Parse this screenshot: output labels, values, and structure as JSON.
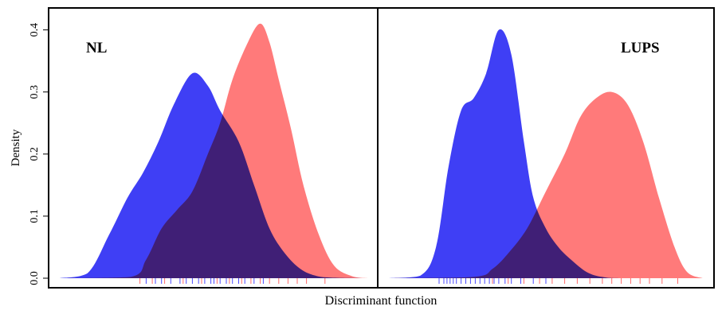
{
  "chart_data": {
    "type": "area",
    "ylabel": "Density",
    "xlabel": "Discriminant function",
    "ylim": [
      0,
      0.42
    ],
    "y_ticks": [
      "0.0",
      "0.1",
      "0.2",
      "0.3",
      "0.4"
    ],
    "y_tick_values": [
      0.0,
      0.1,
      0.2,
      0.3,
      0.4
    ],
    "grid": false,
    "colors": {
      "blue": "#3b3bf5",
      "red": "#ff4747",
      "overlap": "#c8174f"
    },
    "panels": [
      {
        "label": "NL",
        "xlim": [
          0,
          10
        ],
        "series": [
          {
            "color": "blue",
            "x": [
              0,
              0.9,
              1.6,
              2.2,
              2.7,
              3.2,
              3.7,
              4.3,
              4.8,
              5.2,
              5.8,
              6.3,
              6.8,
              7.3,
              7.8,
              8.3,
              8.8,
              10
            ],
            "y": [
              0,
              0.008,
              0.07,
              0.13,
              0.17,
              0.22,
              0.28,
              0.33,
              0.31,
              0.27,
              0.22,
              0.15,
              0.08,
              0.04,
              0.015,
              0.004,
              0.001,
              0
            ]
          },
          {
            "color": "red",
            "x": [
              0,
              2.3,
              2.8,
              3.3,
              3.8,
              4.3,
              4.8,
              5.2,
              5.6,
              6.1,
              6.5,
              6.8,
              7.1,
              7.5,
              7.9,
              8.4,
              8.9,
              9.5,
              10
            ],
            "y": [
              0,
              0.002,
              0.03,
              0.08,
              0.11,
              0.14,
              0.2,
              0.25,
              0.32,
              0.38,
              0.41,
              0.38,
              0.32,
              0.24,
              0.15,
              0.07,
              0.02,
              0.003,
              0
            ]
          }
        ],
        "rug": {
          "blue": [
            2.8,
            3.1,
            3.3,
            3.6,
            3.9,
            4.1,
            4.3,
            4.5,
            4.7,
            4.9,
            5.0,
            5.2,
            5.4,
            5.6,
            5.8,
            6.0,
            6.3,
            6.6
          ],
          "red": [
            2.6,
            3.0,
            3.4,
            4.0,
            4.6,
            5.1,
            5.5,
            5.9,
            6.2,
            6.5,
            6.8,
            7.1,
            7.4,
            7.7,
            8.0,
            8.6
          ]
        }
      },
      {
        "label": "LUPS",
        "xlim": [
          0,
          10
        ],
        "series": [
          {
            "color": "blue",
            "x": [
              0,
              1.0,
              1.5,
              1.9,
              2.3,
              2.7,
              3.1,
              3.5,
              3.9,
              4.3,
              4.6,
              5.0,
              5.4,
              5.8,
              6.3,
              6.8,
              7.5,
              10
            ],
            "y": [
              0,
              0.004,
              0.05,
              0.18,
              0.27,
              0.29,
              0.33,
              0.4,
              0.36,
              0.22,
              0.13,
              0.08,
              0.05,
              0.03,
              0.01,
              0.002,
              0,
              0
            ]
          },
          {
            "color": "red",
            "x": [
              0,
              2.7,
              3.3,
              3.8,
              4.4,
              5.0,
              5.6,
              6.1,
              6.6,
              7.1,
              7.6,
              8.1,
              8.6,
              9.1,
              9.5,
              10
            ],
            "y": [
              0,
              0.002,
              0.015,
              0.04,
              0.08,
              0.14,
              0.2,
              0.26,
              0.29,
              0.3,
              0.28,
              0.22,
              0.13,
              0.05,
              0.01,
              0
            ]
          }
        ],
        "rug": {
          "blue": [
            1.6,
            1.75,
            1.85,
            1.95,
            2.05,
            2.15,
            2.3,
            2.45,
            2.6,
            2.75,
            2.9,
            3.05,
            3.2,
            3.35,
            3.5,
            3.7,
            3.9,
            4.2,
            4.6,
            5.0
          ],
          "red": [
            3.3,
            3.8,
            4.3,
            4.8,
            5.2,
            5.6,
            6.0,
            6.4,
            6.8,
            7.1,
            7.4,
            7.7,
            8.0,
            8.3,
            8.7,
            9.2
          ]
        }
      }
    ]
  }
}
